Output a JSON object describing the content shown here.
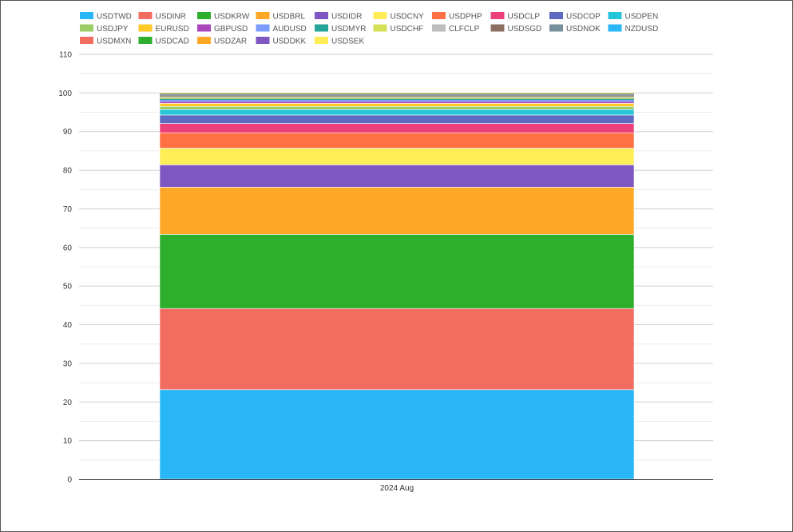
{
  "chart_data": {
    "type": "bar",
    "stacked": true,
    "categories": [
      "2024 Aug"
    ],
    "ylim": [
      0,
      110
    ],
    "yticks": [
      0,
      10,
      20,
      30,
      40,
      50,
      60,
      70,
      80,
      90,
      100,
      110
    ],
    "grid": true,
    "legend_position": "top-left",
    "series": [
      {
        "name": "USDTWD",
        "color": "#29b6f6",
        "values": [
          23.2
        ]
      },
      {
        "name": "USDINR",
        "color": "#f26d60",
        "values": [
          21.0
        ]
      },
      {
        "name": "USDKRW",
        "color": "#2daf2d",
        "values": [
          19.2
        ]
      },
      {
        "name": "USDBRL",
        "color": "#ffa726",
        "values": [
          12.2
        ]
      },
      {
        "name": "USDIDR",
        "color": "#7e57c2",
        "values": [
          5.8
        ]
      },
      {
        "name": "USDCNY",
        "color": "#ffee58",
        "values": [
          4.3
        ]
      },
      {
        "name": "USDPHP",
        "color": "#ff7043",
        "values": [
          4.0
        ]
      },
      {
        "name": "USDCLP",
        "color": "#ec407a",
        "values": [
          2.4
        ]
      },
      {
        "name": "USDCOP",
        "color": "#5c6bc0",
        "values": [
          2.2
        ]
      },
      {
        "name": "USDPEN",
        "color": "#26c6da",
        "values": [
          1.4
        ]
      },
      {
        "name": "USDJPY",
        "color": "#9ccc65",
        "values": [
          0.8
        ]
      },
      {
        "name": "EURUSD",
        "color": "#ffca28",
        "values": [
          0.8
        ]
      },
      {
        "name": "GBPUSD",
        "color": "#ab47bc",
        "values": [
          0.5
        ]
      },
      {
        "name": "AUDUSD",
        "color": "#7b9cff",
        "values": [
          0.4
        ]
      },
      {
        "name": "USDMYR",
        "color": "#26a69a",
        "values": [
          0.3
        ]
      },
      {
        "name": "USDCHF",
        "color": "#d4e157",
        "values": [
          0.3
        ]
      },
      {
        "name": "CLFCLP",
        "color": "#bdbdbd",
        "values": [
          0.3
        ]
      },
      {
        "name": "USDSGD",
        "color": "#8d6e63",
        "values": [
          0.2
        ]
      },
      {
        "name": "USDNOK",
        "color": "#78909c",
        "values": [
          0.2
        ]
      },
      {
        "name": "NZDUSD",
        "color": "#29b6f6",
        "values": [
          0.1
        ]
      },
      {
        "name": "USDMXN",
        "color": "#f26d60",
        "values": [
          0.1
        ]
      },
      {
        "name": "USDCAD",
        "color": "#2daf2d",
        "values": [
          0.1
        ]
      },
      {
        "name": "USDZAR",
        "color": "#ffa726",
        "values": [
          0.1
        ]
      },
      {
        "name": "USDDKK",
        "color": "#7e57c2",
        "values": [
          0.05
        ]
      },
      {
        "name": "USDSEK",
        "color": "#ffee58",
        "values": [
          0.05
        ]
      }
    ]
  }
}
